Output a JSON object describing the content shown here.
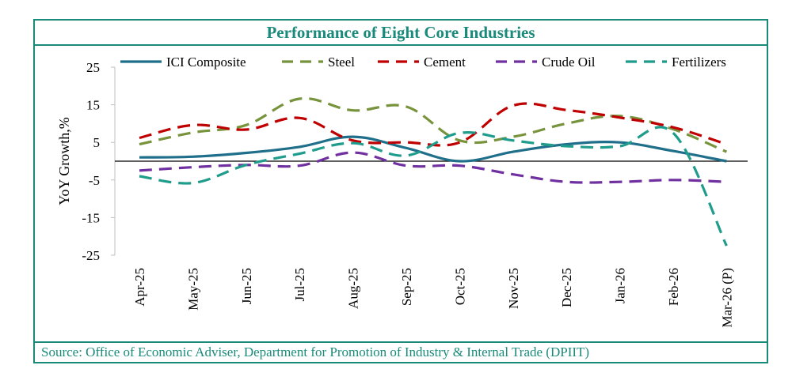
{
  "chart_data": {
    "type": "line",
    "title": "Performance of Eight Core Industries",
    "ylabel": "YoY Growth,%",
    "xlabel": "",
    "ylim": [
      -25,
      25
    ],
    "yticks": [
      25,
      15,
      5,
      -5,
      -15,
      -25
    ],
    "categories": [
      "Apr-25",
      "May-25",
      "Jun-25",
      "Jul-25",
      "Aug-25",
      "Sep-25",
      "Oct-25",
      "Nov-25",
      "Dec-25",
      "Jan-26",
      "Feb-26",
      "Mar-26 (P)"
    ],
    "legend_position": "top",
    "series": [
      {
        "name": "ICI Composite",
        "color": "#1f6f8b",
        "style": "solid",
        "values": [
          1,
          1.2,
          2.2,
          3.8,
          6.5,
          3.5,
          0,
          2.5,
          4.5,
          5,
          2.7,
          0
        ]
      },
      {
        "name": "Steel",
        "color": "#77933c",
        "style": "dashed",
        "values": [
          4.5,
          7.6,
          9.6,
          16.6,
          13.5,
          14.5,
          5.5,
          6.5,
          10,
          12,
          8.5,
          2.5
        ]
      },
      {
        "name": "Cement",
        "color": "#c00000",
        "style": "dashed",
        "values": [
          6.2,
          9.6,
          8.4,
          11.5,
          5.5,
          5,
          5,
          14.8,
          13.6,
          11.6,
          9,
          4.5
        ]
      },
      {
        "name": "Crude Oil",
        "color": "#7030a0",
        "style": "dashed",
        "values": [
          -2.5,
          -1.6,
          -1,
          -1.2,
          2.3,
          -1.2,
          -1.2,
          -3.5,
          -5.5,
          -5.5,
          -5,
          -5.5
        ]
      },
      {
        "name": "Fertilizers",
        "color": "#1f9c8c",
        "style": "dashed",
        "values": [
          -4,
          -5.8,
          -1,
          2,
          4.8,
          1.5,
          7.5,
          5.5,
          4,
          4,
          7.5,
          -22.5
        ]
      }
    ]
  },
  "source": "Source: Office of Economic Adviser, Department for Promotion of Industry & Internal Trade (DPIIT)"
}
